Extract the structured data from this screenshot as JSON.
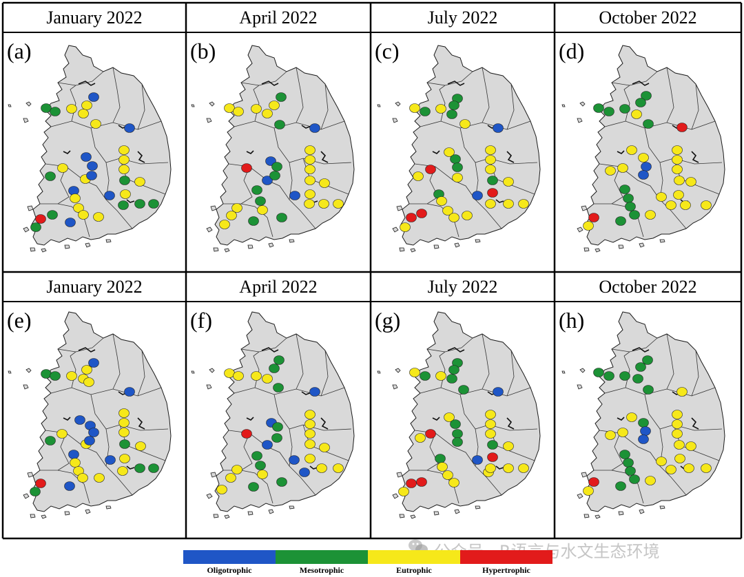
{
  "panels": [
    {
      "title": "January 2022",
      "label": "(a)"
    },
    {
      "title": "April 2022",
      "label": "(b)"
    },
    {
      "title": "July 2022",
      "label": "(c)"
    },
    {
      "title": "October 2022",
      "label": "(d)"
    },
    {
      "title": "January 2022",
      "label": "(e)"
    },
    {
      "title": "April 2022",
      "label": "(f)"
    },
    {
      "title": "July 2022",
      "label": "(g)"
    },
    {
      "title": "October 2022",
      "label": "(h)"
    }
  ],
  "legend": [
    {
      "label": "Oligotrophic",
      "color": "#1f56c6"
    },
    {
      "label": "Mesotrophic",
      "color": "#1c9236"
    },
    {
      "label": "Eutrophic",
      "color": "#f6e81a"
    },
    {
      "label": "Hypertrophic",
      "color": "#e21b1b"
    }
  ],
  "watermark": "公众号 · R语言与水文生态环境",
  "map_colors": {
    "land": "#d9d9d9",
    "border": "#1a1a1a",
    "panel_border": "#000000"
  }
}
